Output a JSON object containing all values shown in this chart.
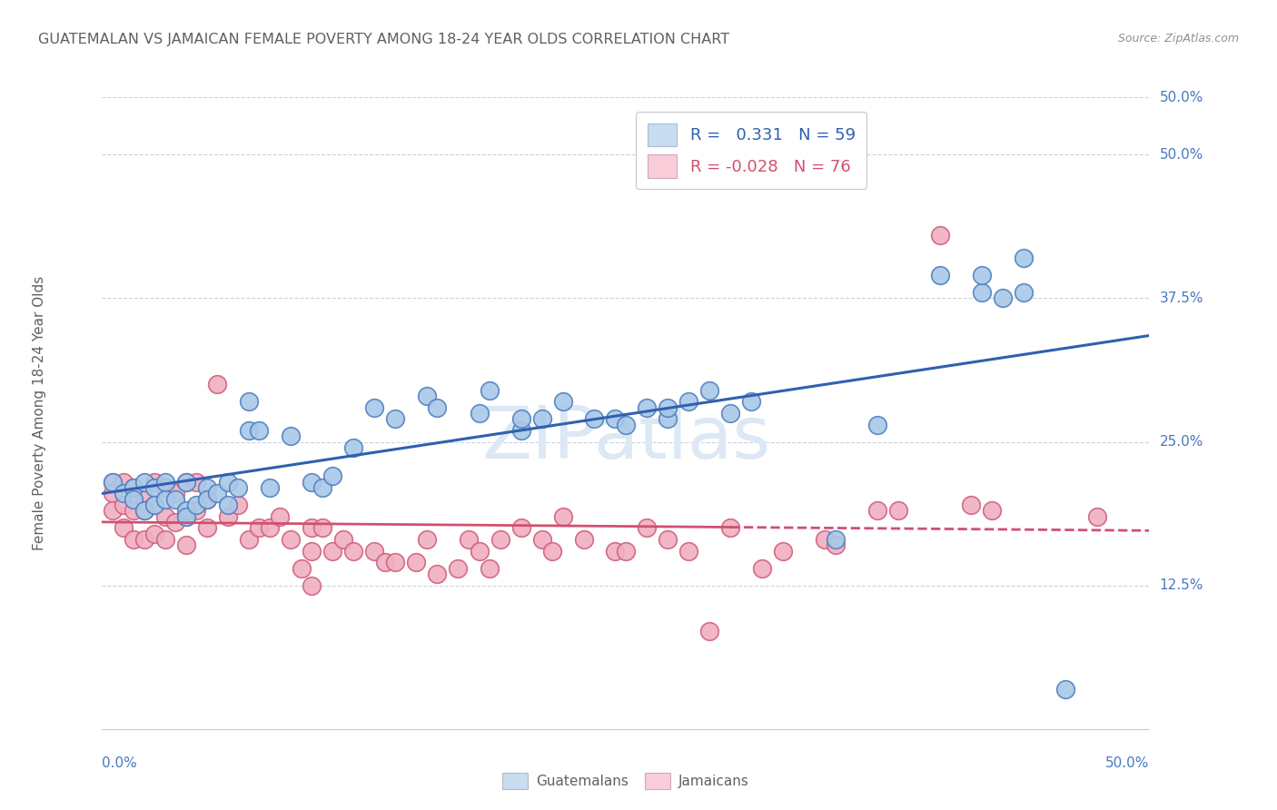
{
  "title": "GUATEMALAN VS JAMAICAN FEMALE POVERTY AMONG 18-24 YEAR OLDS CORRELATION CHART",
  "source": "Source: ZipAtlas.com",
  "ylabel": "Female Poverty Among 18-24 Year Olds",
  "ytick_labels": [
    "12.5%",
    "25.0%",
    "37.5%",
    "50.0%"
  ],
  "ytick_values": [
    0.125,
    0.25,
    0.375,
    0.5
  ],
  "xmin": 0.0,
  "xmax": 0.5,
  "ymin": 0.0,
  "ymax": 0.55,
  "guatemalan_R": 0.331,
  "guatemalan_N": 59,
  "jamaican_R": -0.028,
  "jamaican_N": 76,
  "blue_scatter_color": "#a8c8e8",
  "blue_edge_color": "#5080c0",
  "pink_scatter_color": "#f0b0c0",
  "pink_edge_color": "#d06080",
  "blue_line_color": "#3060b0",
  "pink_line_color": "#d05070",
  "legend_blue_fill": "#c8ddf0",
  "legend_pink_fill": "#f8ccd8",
  "background_color": "#ffffff",
  "grid_color": "#c8d4e4",
  "title_color": "#606060",
  "axis_label_color": "#4878c0",
  "watermark_color": "#dce8f4",
  "guatemalan_x": [
    0.005,
    0.01,
    0.015,
    0.015,
    0.02,
    0.02,
    0.025,
    0.025,
    0.03,
    0.03,
    0.035,
    0.04,
    0.04,
    0.04,
    0.045,
    0.05,
    0.05,
    0.055,
    0.06,
    0.06,
    0.065,
    0.07,
    0.07,
    0.075,
    0.08,
    0.09,
    0.1,
    0.105,
    0.11,
    0.12,
    0.13,
    0.14,
    0.155,
    0.16,
    0.18,
    0.185,
    0.2,
    0.2,
    0.21,
    0.22,
    0.235,
    0.245,
    0.25,
    0.26,
    0.27,
    0.27,
    0.28,
    0.29,
    0.3,
    0.31,
    0.35,
    0.37,
    0.4,
    0.42,
    0.42,
    0.43,
    0.44,
    0.44,
    0.46
  ],
  "guatemalan_y": [
    0.215,
    0.205,
    0.21,
    0.2,
    0.215,
    0.19,
    0.21,
    0.195,
    0.215,
    0.2,
    0.2,
    0.215,
    0.19,
    0.185,
    0.195,
    0.21,
    0.2,
    0.205,
    0.215,
    0.195,
    0.21,
    0.285,
    0.26,
    0.26,
    0.21,
    0.255,
    0.215,
    0.21,
    0.22,
    0.245,
    0.28,
    0.27,
    0.29,
    0.28,
    0.275,
    0.295,
    0.26,
    0.27,
    0.27,
    0.285,
    0.27,
    0.27,
    0.265,
    0.28,
    0.27,
    0.28,
    0.285,
    0.295,
    0.275,
    0.285,
    0.165,
    0.265,
    0.395,
    0.38,
    0.395,
    0.375,
    0.41,
    0.38,
    0.035
  ],
  "jamaican_x": [
    0.005,
    0.005,
    0.005,
    0.01,
    0.01,
    0.01,
    0.015,
    0.015,
    0.015,
    0.02,
    0.02,
    0.02,
    0.025,
    0.025,
    0.025,
    0.03,
    0.03,
    0.03,
    0.035,
    0.035,
    0.04,
    0.04,
    0.04,
    0.045,
    0.045,
    0.05,
    0.05,
    0.055,
    0.06,
    0.065,
    0.07,
    0.075,
    0.08,
    0.085,
    0.09,
    0.095,
    0.1,
    0.1,
    0.1,
    0.105,
    0.11,
    0.115,
    0.12,
    0.13,
    0.135,
    0.14,
    0.15,
    0.155,
    0.16,
    0.17,
    0.175,
    0.18,
    0.185,
    0.19,
    0.2,
    0.21,
    0.215,
    0.22,
    0.23,
    0.245,
    0.25,
    0.26,
    0.27,
    0.28,
    0.29,
    0.3,
    0.315,
    0.325,
    0.345,
    0.35,
    0.37,
    0.38,
    0.4,
    0.415,
    0.425,
    0.475
  ],
  "jamaican_y": [
    0.215,
    0.205,
    0.19,
    0.215,
    0.195,
    0.175,
    0.21,
    0.19,
    0.165,
    0.2,
    0.19,
    0.165,
    0.215,
    0.195,
    0.17,
    0.21,
    0.185,
    0.165,
    0.205,
    0.18,
    0.215,
    0.185,
    0.16,
    0.215,
    0.19,
    0.2,
    0.175,
    0.3,
    0.185,
    0.195,
    0.165,
    0.175,
    0.175,
    0.185,
    0.165,
    0.14,
    0.175,
    0.155,
    0.125,
    0.175,
    0.155,
    0.165,
    0.155,
    0.155,
    0.145,
    0.145,
    0.145,
    0.165,
    0.135,
    0.14,
    0.165,
    0.155,
    0.14,
    0.165,
    0.175,
    0.165,
    0.155,
    0.185,
    0.165,
    0.155,
    0.155,
    0.175,
    0.165,
    0.155,
    0.085,
    0.175,
    0.14,
    0.155,
    0.165,
    0.16,
    0.19,
    0.19,
    0.43,
    0.195,
    0.19,
    0.185
  ]
}
